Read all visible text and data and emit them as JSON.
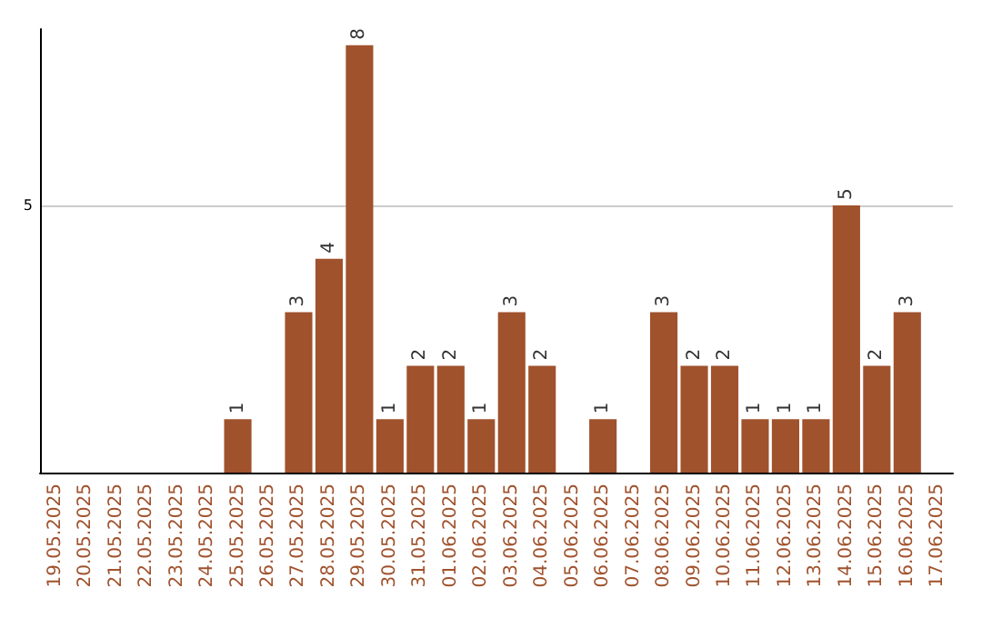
{
  "chart_data": {
    "type": "bar",
    "categories": [
      "19.05.2025",
      "20.05.2025",
      "21.05.2025",
      "22.05.2025",
      "23.05.2025",
      "24.05.2025",
      "25.05.2025",
      "26.05.2025",
      "27.05.2025",
      "28.05.2025",
      "29.05.2025",
      "30.05.2025",
      "31.05.2025",
      "01.06.2025",
      "02.06.2025",
      "03.06.2025",
      "04.06.2025",
      "05.06.2025",
      "06.06.2025",
      "07.06.2025",
      "08.06.2025",
      "09.06.2025",
      "10.06.2025",
      "11.06.2025",
      "12.06.2025",
      "13.06.2025",
      "14.06.2025",
      "15.06.2025",
      "16.06.2025",
      "17.06.2025"
    ],
    "values": [
      0,
      0,
      0,
      0,
      0,
      0,
      1,
      0,
      3,
      4,
      8,
      1,
      2,
      2,
      1,
      3,
      2,
      0,
      1,
      0,
      3,
      2,
      2,
      1,
      1,
      1,
      5,
      2,
      3,
      0
    ],
    "value_labels": [
      null,
      null,
      null,
      null,
      null,
      null,
      "1",
      null,
      "3",
      "4",
      "8",
      "1",
      "2",
      "2",
      "1",
      "3",
      "2",
      null,
      "1",
      null,
      "3",
      "2",
      "2",
      "1",
      "1",
      "1",
      "5",
      "2",
      "3",
      null
    ],
    "color": "#a0522d",
    "ylim": [
      0,
      8.3
    ],
    "yticks": [
      5
    ],
    "grid": "y"
  }
}
